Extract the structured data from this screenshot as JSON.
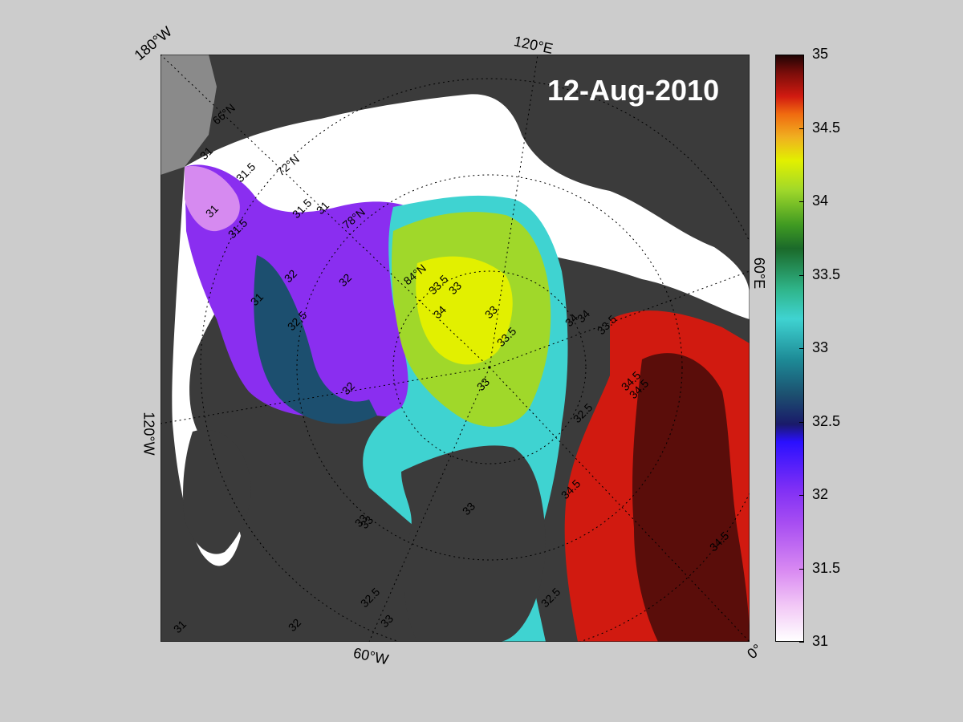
{
  "title": "12-Aug-2010",
  "edge_labels": {
    "top_left": "180°W",
    "top": "120°E",
    "right": "60°E",
    "left": "120°W",
    "bottom": "60°W",
    "bottom_right": "0°"
  },
  "grid_labels": [
    "66°N",
    "72°N",
    "78°N",
    "84°N"
  ],
  "colorbar": {
    "min": 31,
    "max": 35,
    "ticks": [
      "35",
      "34.5",
      "34",
      "33.5",
      "33",
      "32.5",
      "32",
      "31.5",
      "31"
    ]
  },
  "contour_labels": [
    "31",
    "31.5",
    "31",
    "31.5",
    "31",
    "31.5",
    "32",
    "32",
    "32.5",
    "31",
    "32",
    "33",
    "33.5",
    "34",
    "33",
    "33",
    "33.5",
    "34",
    "34.5",
    "34.5",
    "34.5",
    "34",
    "33",
    "32.5",
    "33",
    "32.5",
    "33",
    "31",
    "33.5",
    "34.5",
    "33",
    "32",
    "32.5"
  ],
  "colors": {
    "land": "#3b3b3b",
    "ice": "#ffffff",
    "background": "#cccccc"
  }
}
